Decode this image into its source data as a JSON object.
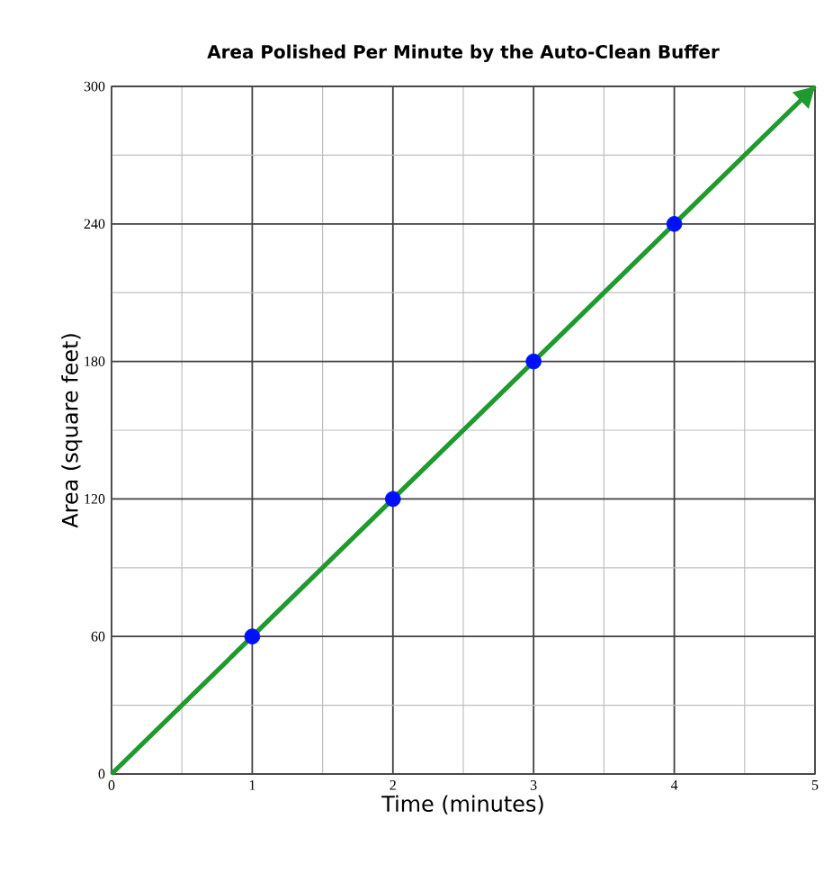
{
  "chart_data": {
    "type": "line",
    "title": "Area Polished Per Minute by the Auto-Clean Buffer",
    "xlabel": "Time (minutes)",
    "ylabel": "Area (square feet)",
    "series": [
      {
        "color": "#1f9a2e",
        "x": [
          0,
          5
        ],
        "values": [
          0,
          300
        ]
      },
      {
        "type": "scatter",
        "color": "#0010ff",
        "x": [
          1,
          2,
          3,
          4
        ],
        "values": [
          60,
          120,
          180,
          240
        ],
        "marker": "circle"
      }
    ],
    "xlim": [
      0,
      5
    ],
    "ylim": [
      0,
      300
    ],
    "xticks": [
      0,
      1,
      2,
      3,
      4,
      5
    ],
    "yticks": [
      0,
      60,
      120,
      180,
      240,
      300
    ],
    "grid": true
  }
}
